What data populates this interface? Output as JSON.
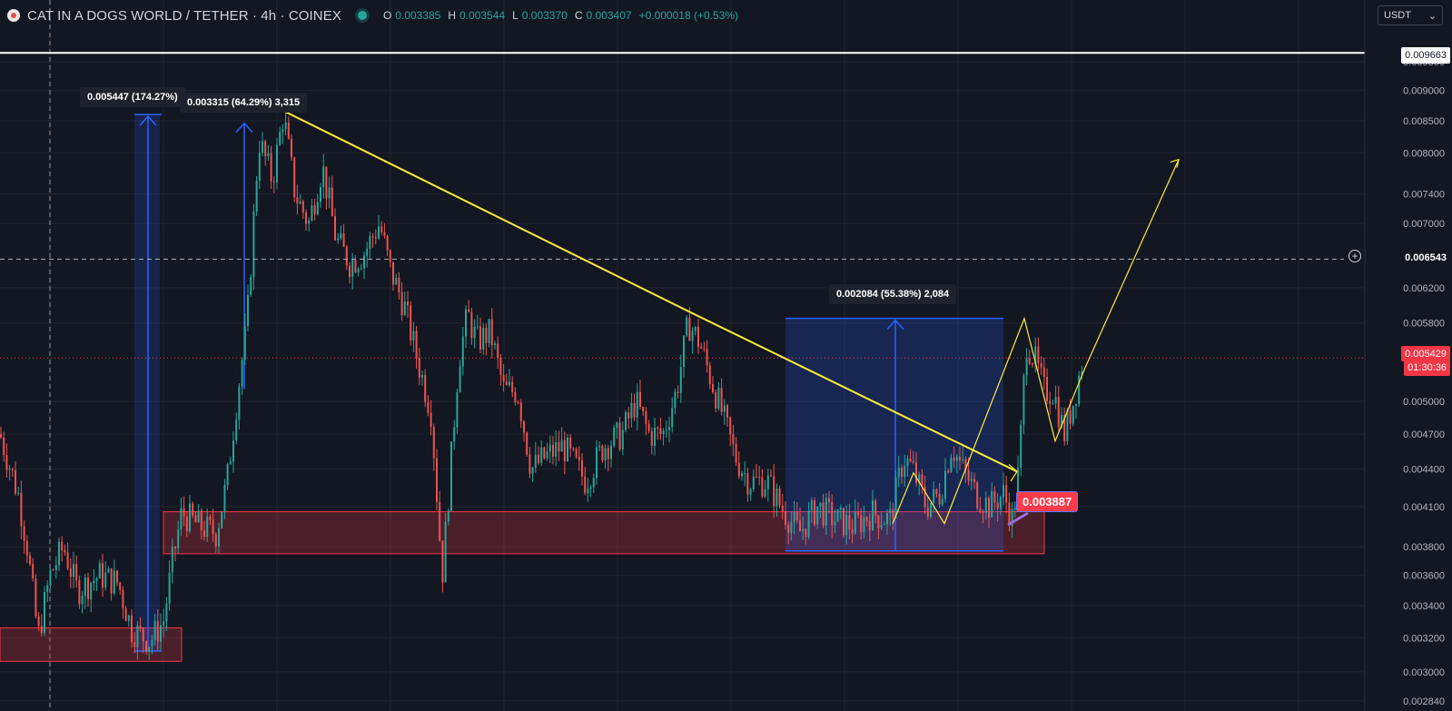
{
  "header": {
    "symbol_title": "CAT IN A DOGS WORLD / TETHER · 4h · COINEX",
    "ohlc": [
      {
        "key": "O",
        "value": "0.003385"
      },
      {
        "key": "H",
        "value": "0.003544"
      },
      {
        "key": "L",
        "value": "0.003370"
      },
      {
        "key": "C",
        "value": "0.003407"
      },
      {
        "key": "",
        "value": "+0.000018 (+0.53%)"
      }
    ],
    "currency": "USDT",
    "status_color": "#26a69a"
  },
  "measure_labels": {
    "m1": "0.005447 (174.27%)",
    "m2": "0.003315 (64.29%) 3,315",
    "m3": "0.002084 (55.38%) 2,084"
  },
  "price_flag": "0.003887",
  "axis_tags": {
    "white_line": "0.009663",
    "dashed_line": "0.006543",
    "current_price": "0.005429",
    "countdown": "01:30:36"
  },
  "colors": {
    "background": "#131722",
    "up": "#26a69a",
    "down": "#ef5350",
    "trendline": "#ffeb3b",
    "measure": "#2962ff",
    "zone": "#f23645"
  },
  "chart_data": {
    "type": "candlestick",
    "y_scale": "log",
    "y_ticks": [
      "0.009500",
      "0.009000",
      "0.008500",
      "0.008000",
      "0.007400",
      "0.007000",
      "0.006200",
      "0.005800",
      "0.005000",
      "0.004700",
      "0.004400",
      "0.004100",
      "0.003800",
      "0.003600",
      "0.003400",
      "0.003200",
      "0.003000",
      "0.002840"
    ],
    "ylim": [
      0.00281,
      0.0098
    ],
    "grid": true,
    "horizontal_lines": [
      0.009663,
      0.006543
    ],
    "current_price": 0.005429,
    "zones": [
      {
        "x": [
          0,
          200
        ],
        "y": [
          0.00306,
          0.00326
        ]
      },
      {
        "x": [
          180,
          1150
        ],
        "y": [
          0.00375,
          0.00406
        ]
      }
    ],
    "measures": [
      {
        "x": [
          130,
          168
        ],
        "y": [
          0.00312,
          0.0086
        ]
      },
      {
        "x": [
          248,
          292
        ],
        "y": [
          0.00512,
          0.00849
        ]
      },
      {
        "x": [
          865,
          1105
        ],
        "y": [
          0.00377,
          0.00585
        ]
      }
    ],
    "trendline": [
      [
        300,
        0.00875
      ],
      [
        760,
        0.00592
      ],
      [
        1120,
        0.00438
      ]
    ],
    "projection_path": [
      [
        983,
        0.00397
      ],
      [
        1006,
        0.00437
      ],
      [
        1040,
        0.00397
      ],
      [
        1128,
        0.00585
      ],
      [
        1162,
        0.00464
      ],
      [
        1195,
        0.00533
      ],
      [
        1298,
        0.0079
      ]
    ],
    "candle_path": [
      [
        0,
        0.0047
      ],
      [
        20,
        0.0042
      ],
      [
        30,
        0.0038
      ],
      [
        42,
        0.0032
      ],
      [
        55,
        0.0036
      ],
      [
        70,
        0.0038
      ],
      [
        85,
        0.0035
      ],
      [
        110,
        0.0036
      ],
      [
        130,
        0.00355
      ],
      [
        145,
        0.00325
      ],
      [
        165,
        0.00318
      ],
      [
        180,
        0.0033
      ],
      [
        190,
        0.0037
      ],
      [
        200,
        0.00405
      ],
      [
        220,
        0.00395
      ],
      [
        238,
        0.0039
      ],
      [
        250,
        0.0043
      ],
      [
        262,
        0.0051
      ],
      [
        272,
        0.0058
      ],
      [
        285,
        0.0082
      ],
      [
        300,
        0.0076
      ],
      [
        312,
        0.0086
      ],
      [
        325,
        0.0074
      ],
      [
        340,
        0.007
      ],
      [
        355,
        0.0078
      ],
      [
        370,
        0.0068
      ],
      [
        385,
        0.0065
      ],
      [
        400,
        0.0066
      ],
      [
        418,
        0.007
      ],
      [
        430,
        0.0064
      ],
      [
        445,
        0.006
      ],
      [
        460,
        0.0054
      ],
      [
        475,
        0.0049
      ],
      [
        487,
        0.0036
      ],
      [
        495,
        0.0043
      ],
      [
        505,
        0.0054
      ],
      [
        515,
        0.0059
      ],
      [
        525,
        0.0056
      ],
      [
        540,
        0.0057
      ],
      [
        555,
        0.0051
      ],
      [
        570,
        0.0051
      ],
      [
        585,
        0.0044
      ],
      [
        600,
        0.0045
      ],
      [
        620,
        0.0046
      ],
      [
        645,
        0.0043
      ],
      [
        665,
        0.0046
      ],
      [
        685,
        0.0047
      ],
      [
        700,
        0.005
      ],
      [
        715,
        0.0047
      ],
      [
        730,
        0.0047
      ],
      [
        745,
        0.0051
      ],
      [
        758,
        0.0058
      ],
      [
        770,
        0.0056
      ],
      [
        780,
        0.0053
      ],
      [
        795,
        0.0049
      ],
      [
        810,
        0.0045
      ],
      [
        825,
        0.0043
      ],
      [
        845,
        0.0043
      ],
      [
        860,
        0.0041
      ],
      [
        880,
        0.0039
      ],
      [
        900,
        0.0041
      ],
      [
        920,
        0.004
      ],
      [
        940,
        0.00395
      ],
      [
        960,
        0.00405
      ],
      [
        980,
        0.004
      ],
      [
        995,
        0.0045
      ],
      [
        1005,
        0.0044
      ],
      [
        1020,
        0.0041
      ],
      [
        1035,
        0.0042
      ],
      [
        1048,
        0.0046
      ],
      [
        1060,
        0.0044
      ],
      [
        1075,
        0.0042
      ],
      [
        1090,
        0.0041
      ],
      [
        1105,
        0.0042
      ],
      [
        1115,
        0.004
      ],
      [
        1122,
        0.0044
      ],
      [
        1130,
        0.0056
      ],
      [
        1140,
        0.0054
      ],
      [
        1150,
        0.0051
      ],
      [
        1160,
        0.0051
      ],
      [
        1172,
        0.0047
      ],
      [
        1182,
        0.005
      ],
      [
        1192,
        0.0054
      ]
    ]
  }
}
